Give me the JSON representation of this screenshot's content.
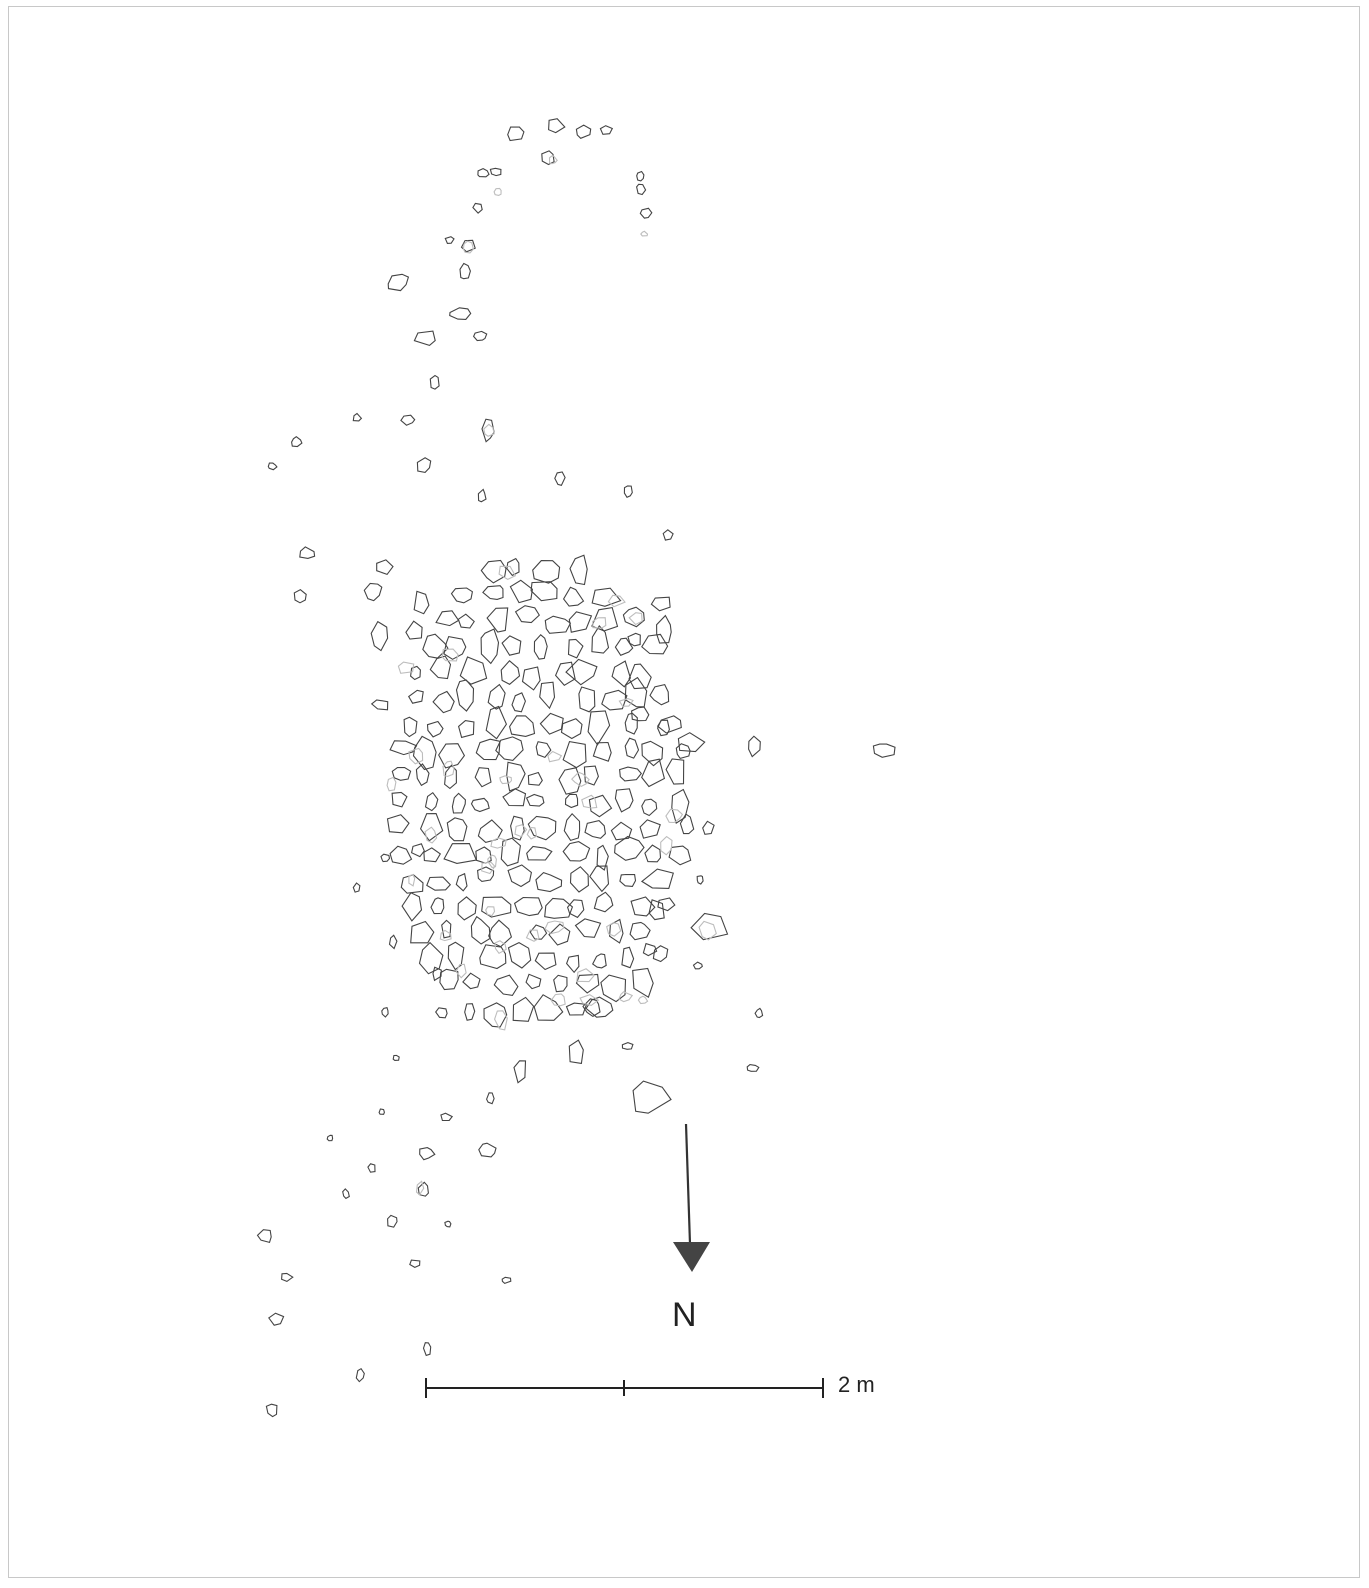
{
  "north_label": "N",
  "scale_label": "2 m",
  "colors": {
    "stone_outline": "#444444",
    "faint_outline": "#bdbdbd",
    "arrow": "#444444",
    "frame": "#c8c8c8"
  },
  "icons": {
    "north_arrow": "arrow-down-icon"
  }
}
